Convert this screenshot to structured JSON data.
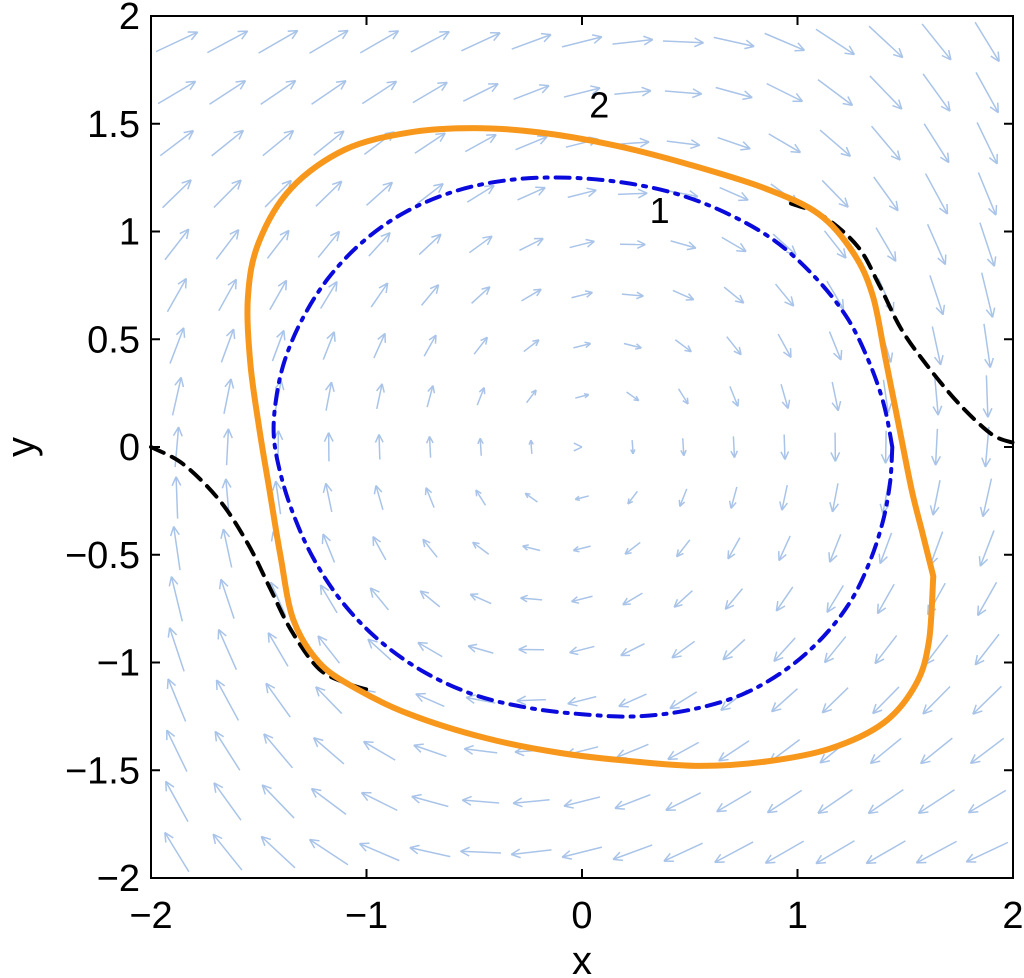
{
  "chart_data": {
    "type": "line",
    "title": "",
    "xlabel": "x",
    "ylabel": "y",
    "xlim": [
      -2,
      2
    ],
    "ylim": [
      -2,
      2
    ],
    "xticks": [
      -2,
      -1,
      0,
      1,
      2
    ],
    "yticks": [
      -2,
      -1.5,
      -1,
      -0.5,
      0,
      0.5,
      1,
      1.5,
      2
    ],
    "xtick_labels": [
      "−2",
      "−1",
      "0",
      "1",
      "2"
    ],
    "ytick_labels": [
      "−2",
      "−1.5",
      "−1",
      "−0.5",
      "0",
      "0.5",
      "1",
      "1.5",
      "2"
    ],
    "grid": false,
    "background_field": {
      "type": "direction-field",
      "color": "#a9c4e8"
    },
    "series": [
      {
        "label": "1",
        "style": "dash-dot",
        "color": "#0a0adc",
        "points": [
          [
            1.44,
            0.0
          ],
          [
            1.43,
            -0.16
          ],
          [
            1.4,
            -0.33
          ],
          [
            1.34,
            -0.52
          ],
          [
            1.25,
            -0.71
          ],
          [
            1.12,
            -0.88
          ],
          [
            0.95,
            -1.03
          ],
          [
            0.74,
            -1.15
          ],
          [
            0.5,
            -1.22
          ],
          [
            0.25,
            -1.25
          ],
          [
            0.0,
            -1.24
          ],
          [
            -0.25,
            -1.21
          ],
          [
            -0.5,
            -1.15
          ],
          [
            -0.74,
            -1.04
          ],
          [
            -0.95,
            -0.89
          ],
          [
            -1.12,
            -0.71
          ],
          [
            -1.25,
            -0.51
          ],
          [
            -1.34,
            -0.31
          ],
          [
            -1.4,
            -0.12
          ],
          [
            -1.43,
            0.05
          ],
          [
            -1.42,
            0.22
          ],
          [
            -1.38,
            0.4
          ],
          [
            -1.3,
            0.59
          ],
          [
            -1.18,
            0.78
          ],
          [
            -1.02,
            0.95
          ],
          [
            -0.82,
            1.09
          ],
          [
            -0.58,
            1.19
          ],
          [
            -0.33,
            1.24
          ],
          [
            -0.08,
            1.25
          ],
          [
            0.17,
            1.23
          ],
          [
            0.42,
            1.18
          ],
          [
            0.66,
            1.09
          ],
          [
            0.89,
            0.96
          ],
          [
            1.08,
            0.79
          ],
          [
            1.23,
            0.6
          ],
          [
            1.33,
            0.4
          ],
          [
            1.4,
            0.2
          ],
          [
            1.44,
            0.0
          ]
        ]
      },
      {
        "label": "2",
        "style": "solid",
        "color": "#f7981d",
        "points": [
          [
            1.63,
            -0.6
          ],
          [
            1.61,
            -0.9
          ],
          [
            1.55,
            -1.1
          ],
          [
            1.4,
            -1.28
          ],
          [
            1.15,
            -1.4
          ],
          [
            0.85,
            -1.46
          ],
          [
            0.55,
            -1.48
          ],
          [
            0.25,
            -1.46
          ],
          [
            -0.1,
            -1.42
          ],
          [
            -0.45,
            -1.35
          ],
          [
            -0.8,
            -1.24
          ],
          [
            -1.05,
            -1.12
          ],
          [
            -1.22,
            -1.0
          ],
          [
            -1.34,
            -0.8
          ],
          [
            -1.4,
            -0.5
          ],
          [
            -1.45,
            -0.2
          ],
          [
            -1.5,
            0.1
          ],
          [
            -1.54,
            0.4
          ],
          [
            -1.55,
            0.7
          ],
          [
            -1.5,
            0.95
          ],
          [
            -1.35,
            1.2
          ],
          [
            -1.1,
            1.38
          ],
          [
            -0.8,
            1.46
          ],
          [
            -0.5,
            1.48
          ],
          [
            -0.2,
            1.46
          ],
          [
            0.15,
            1.4
          ],
          [
            0.5,
            1.31
          ],
          [
            0.85,
            1.2
          ],
          [
            1.1,
            1.08
          ],
          [
            1.26,
            0.9
          ],
          [
            1.35,
            0.7
          ],
          [
            1.41,
            0.4
          ],
          [
            1.47,
            0.1
          ],
          [
            1.53,
            -0.2
          ],
          [
            1.58,
            -0.4
          ],
          [
            1.63,
            -0.6
          ]
        ]
      },
      {
        "label": "",
        "style": "dashed",
        "color": "#000000",
        "points": [
          [
            0.97,
            1.13
          ],
          [
            1.12,
            1.07
          ],
          [
            1.28,
            0.93
          ],
          [
            1.38,
            0.75
          ],
          [
            1.48,
            0.55
          ],
          [
            1.6,
            0.38
          ],
          [
            1.75,
            0.2
          ],
          [
            1.9,
            0.06
          ],
          [
            2.0,
            0.02
          ]
        ]
      },
      {
        "label": "",
        "style": "dashed",
        "color": "#000000",
        "points": [
          [
            -2.0,
            0.0
          ],
          [
            -1.85,
            -0.08
          ],
          [
            -1.68,
            -0.25
          ],
          [
            -1.55,
            -0.45
          ],
          [
            -1.45,
            -0.65
          ],
          [
            -1.35,
            -0.85
          ],
          [
            -1.22,
            -1.03
          ],
          [
            -1.08,
            -1.1
          ],
          [
            -0.98,
            -1.13
          ]
        ]
      }
    ]
  }
}
